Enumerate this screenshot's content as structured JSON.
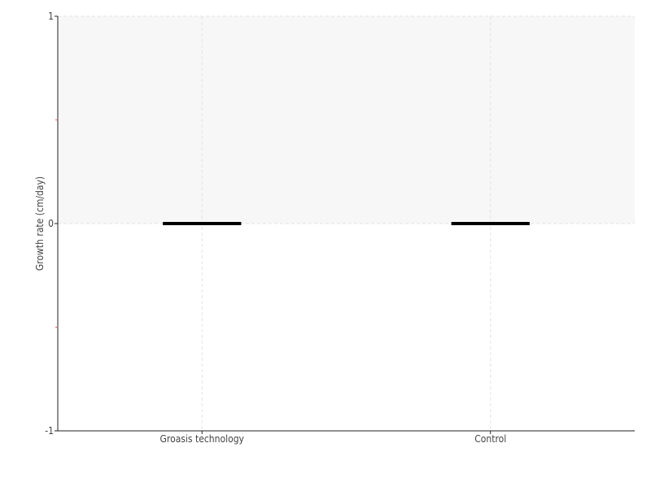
{
  "chart_data": {
    "type": "box",
    "categories": [
      "Groasis technology",
      "Control"
    ],
    "series": [
      {
        "values": [
          {
            "min": 0,
            "q1": 0,
            "median": 0,
            "q3": 0,
            "max": 0
          },
          {
            "min": 0,
            "q1": 0,
            "median": 0,
            "q3": 0,
            "max": 0
          }
        ]
      }
    ],
    "xlabel": "",
    "ylabel": "Growth rate (cm/day)",
    "ylim": [
      -1,
      1
    ],
    "yticks": [
      "1",
      "0",
      "-1"
    ],
    "minor_yticks": [
      0.5,
      -0.5
    ],
    "grid": true,
    "colors": {
      "box": "#000000",
      "shade": "#f7f7f7",
      "grid": "#e3e3e3",
      "minor_tick": "#e06060"
    }
  }
}
